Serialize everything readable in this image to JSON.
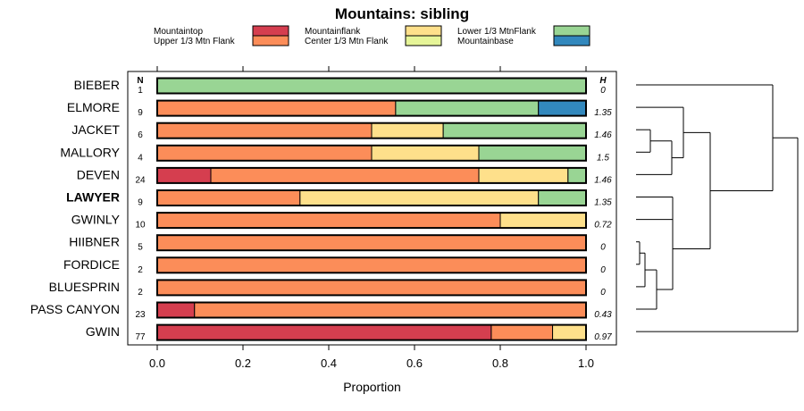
{
  "chart_data": {
    "type": "bar",
    "orientation": "horizontal",
    "stacked": true,
    "title": "Mountains: sibling",
    "xlabel": "Proportion",
    "xlim": [
      0,
      1
    ],
    "x_ticks": [
      "0.0",
      "0.2",
      "0.4",
      "0.6",
      "0.8",
      "1.0"
    ],
    "n_header": "N",
    "h_header": "H",
    "legend": [
      {
        "name": "Mountaintop",
        "color": "#d53e4f"
      },
      {
        "name": "Upper 1/3 Mtn Flank",
        "color": "#fc8d59"
      },
      {
        "name": "Mountainflank",
        "color": "#fee08b"
      },
      {
        "name": "Center 1/3 Mtn Flank",
        "color": "#e6f598"
      },
      {
        "name": "Lower 1/3 MtnFlank",
        "color": "#99d594"
      },
      {
        "name": "Mountainbase",
        "color": "#3288bd"
      }
    ],
    "rows": [
      {
        "label": "BIEBER",
        "n": "1",
        "h": "0",
        "bold": false,
        "values": [
          0,
          0,
          0,
          0,
          1.0,
          0
        ]
      },
      {
        "label": "ELMORE",
        "n": "9",
        "h": "1.35",
        "bold": false,
        "values": [
          0,
          0.556,
          0,
          0,
          0.333,
          0.111
        ]
      },
      {
        "label": "JACKET",
        "n": "6",
        "h": "1.46",
        "bold": false,
        "values": [
          0,
          0.5,
          0.167,
          0,
          0.333,
          0
        ]
      },
      {
        "label": "MALLORY",
        "n": "4",
        "h": "1.5",
        "bold": false,
        "values": [
          0,
          0.5,
          0.25,
          0,
          0.25,
          0
        ]
      },
      {
        "label": "DEVEN",
        "n": "24",
        "h": "1.46",
        "bold": false,
        "values": [
          0.125,
          0.625,
          0.208,
          0,
          0.042,
          0
        ]
      },
      {
        "label": "LAWYER",
        "n": "9",
        "h": "1.35",
        "bold": true,
        "values": [
          0,
          0.333,
          0.556,
          0,
          0.111,
          0
        ]
      },
      {
        "label": "GWINLY",
        "n": "10",
        "h": "0.72",
        "bold": false,
        "values": [
          0,
          0.8,
          0.2,
          0,
          0,
          0
        ]
      },
      {
        "label": "HIIBNER",
        "n": "5",
        "h": "0",
        "bold": false,
        "values": [
          0,
          1.0,
          0,
          0,
          0,
          0
        ]
      },
      {
        "label": "FORDICE",
        "n": "2",
        "h": "0",
        "bold": false,
        "values": [
          0,
          1.0,
          0,
          0,
          0,
          0
        ]
      },
      {
        "label": "BLUESPRIN",
        "n": "2",
        "h": "0",
        "bold": false,
        "values": [
          0,
          1.0,
          0,
          0,
          0,
          0
        ]
      },
      {
        "label": "PASS CANYON",
        "n": "23",
        "h": "0.43",
        "bold": false,
        "values": [
          0.087,
          0.913,
          0,
          0,
          0,
          0
        ]
      },
      {
        "label": "GWIN",
        "n": "77",
        "h": "0.97",
        "bold": false,
        "values": [
          0.779,
          0.143,
          0.078,
          0,
          0,
          0
        ]
      }
    ]
  }
}
